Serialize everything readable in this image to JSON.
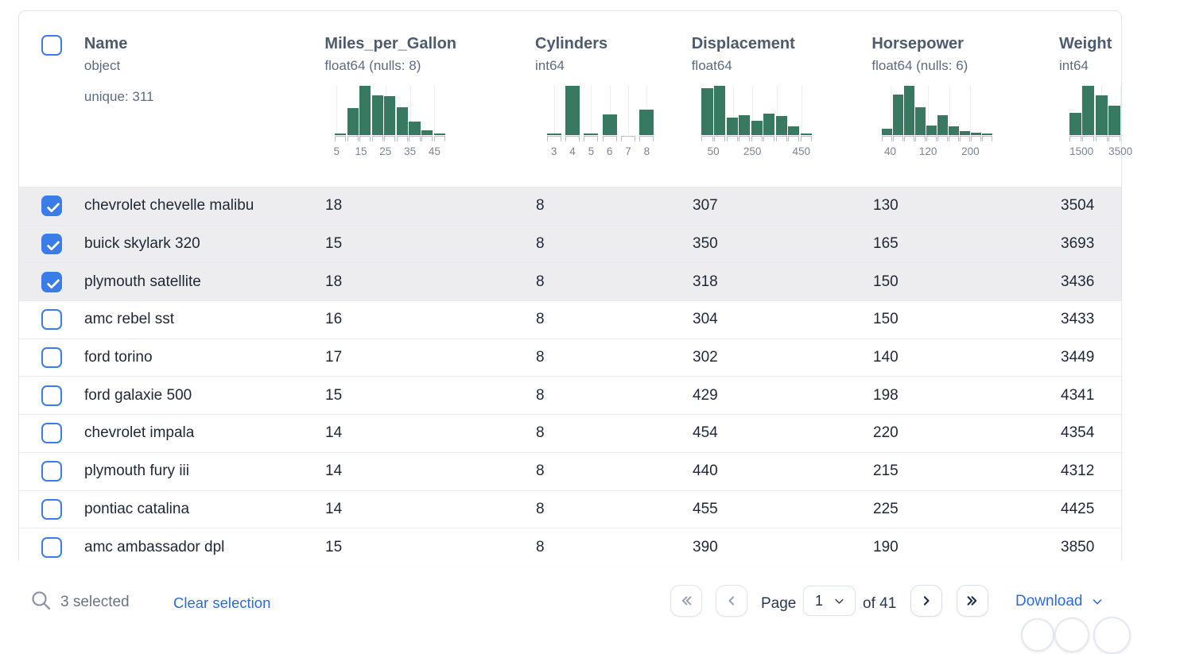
{
  "colors": {
    "accent_blue": "#3b7de8",
    "link_blue": "#2c6bda",
    "bar_green": "#377a61",
    "selected_row_bg": "#ededf0"
  },
  "table": {
    "select_all_checked": false,
    "columns": [
      {
        "key": "name",
        "label": "Name",
        "dtype": "object",
        "extra": "unique: 311"
      },
      {
        "key": "miles_per_gallon",
        "label": "Miles_per_Gallon",
        "dtype": "float64 (nulls: 8)",
        "histogram": {
          "bars": [
            0.03,
            0.55,
            1,
            0.8,
            0.79,
            0.57,
            0.28,
            0.1,
            0.03
          ],
          "labels": [
            {
              "text": "5",
              "frac": 0.02
            },
            {
              "text": "15",
              "frac": 0.24
            },
            {
              "text": "25",
              "frac": 0.46
            },
            {
              "text": "35",
              "frac": 0.68
            },
            {
              "text": "45",
              "frac": 0.9
            }
          ]
        }
      },
      {
        "key": "cylinders",
        "label": "Cylinders",
        "dtype": "int64",
        "histogram": {
          "gap": 5,
          "bars": [
            0.03,
            1,
            0.02,
            0.42,
            0,
            0.52
          ],
          "labels": [
            {
              "text": "3",
              "frac": 0.083
            },
            {
              "text": "4",
              "frac": 0.25
            },
            {
              "text": "5",
              "frac": 0.417
            },
            {
              "text": "6",
              "frac": 0.583
            },
            {
              "text": "7",
              "frac": 0.75
            },
            {
              "text": "8",
              "frac": 0.917
            }
          ]
        }
      },
      {
        "key": "displacement",
        "label": "Displacement",
        "dtype": "float64",
        "histogram": {
          "bars": [
            0.95,
            1,
            0.35,
            0.41,
            0.29,
            0.44,
            0.38,
            0.18,
            0.04
          ],
          "labels": [
            {
              "text": "50",
              "frac": 0.11
            },
            {
              "text": "250",
              "frac": 0.46
            },
            {
              "text": "450",
              "frac": 0.9
            }
          ],
          "grid": [
            0.11,
            0.285,
            0.46,
            0.68,
            0.9
          ]
        }
      },
      {
        "key": "horsepower",
        "label": "Horsepower",
        "dtype": "float64 (nulls: 6)",
        "histogram": {
          "bars": [
            0.13,
            0.83,
            1,
            0.57,
            0.2,
            0.4,
            0.17,
            0.08,
            0.05,
            0.04
          ],
          "labels": [
            {
              "text": "40",
              "frac": 0.08
            },
            {
              "text": "120",
              "frac": 0.42
            },
            {
              "text": "200",
              "frac": 0.8
            }
          ],
          "grid": [
            0.08,
            0.25,
            0.42,
            0.61,
            0.8
          ]
        }
      },
      {
        "key": "weight",
        "label": "Weight",
        "dtype": "int64",
        "histogram": {
          "span": 0.47,
          "clip": 66,
          "bars": [
            0.45,
            1,
            0.81,
            0.6
          ],
          "labels": [
            {
              "text": "1500",
              "frac": 0.115
            },
            {
              "text": "3500",
              "frac": 0.465
            }
          ],
          "grid": [
            0.115,
            0.29,
            0.465
          ]
        }
      }
    ],
    "rows": [
      {
        "selected": true,
        "name": "chevrolet chevelle malibu",
        "values": [
          "18",
          "8",
          "307",
          "130",
          "3504"
        ]
      },
      {
        "selected": true,
        "name": "buick skylark 320",
        "values": [
          "15",
          "8",
          "350",
          "165",
          "3693"
        ]
      },
      {
        "selected": true,
        "name": "plymouth satellite",
        "values": [
          "18",
          "8",
          "318",
          "150",
          "3436"
        ]
      },
      {
        "selected": false,
        "name": "amc rebel sst",
        "values": [
          "16",
          "8",
          "304",
          "150",
          "3433"
        ]
      },
      {
        "selected": false,
        "name": "ford torino",
        "values": [
          "17",
          "8",
          "302",
          "140",
          "3449"
        ]
      },
      {
        "selected": false,
        "name": "ford galaxie 500",
        "values": [
          "15",
          "8",
          "429",
          "198",
          "4341"
        ]
      },
      {
        "selected": false,
        "name": "chevrolet impala",
        "values": [
          "14",
          "8",
          "454",
          "220",
          "4354"
        ]
      },
      {
        "selected": false,
        "name": "plymouth fury iii",
        "values": [
          "14",
          "8",
          "440",
          "215",
          "4312"
        ]
      },
      {
        "selected": false,
        "name": "pontiac catalina",
        "values": [
          "14",
          "8",
          "455",
          "225",
          "4425"
        ]
      },
      {
        "selected": false,
        "name": "amc ambassador dpl",
        "values": [
          "15",
          "8",
          "390",
          "190",
          "3850"
        ]
      }
    ]
  },
  "footer": {
    "selected_text": "3 selected",
    "clear_label": "Clear selection",
    "page_label": "Page",
    "page_value": "1",
    "of_label": "of 41",
    "download_label": "Download"
  }
}
